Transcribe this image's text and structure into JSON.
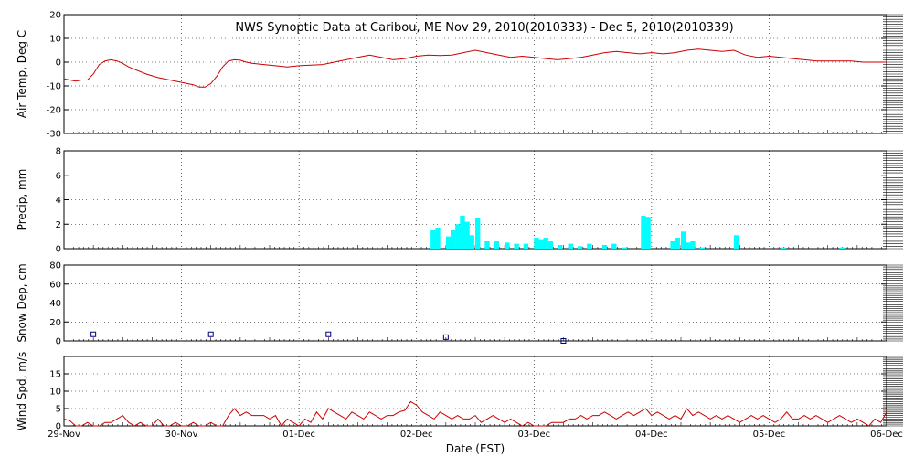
{
  "title": "NWS Synoptic Data at Caribou, ME    Nov 29, 2010(2010333) - Dec  5, 2010(2010339)",
  "xlabel": "Date (EST)",
  "x_ticks": [
    "29-Nov",
    "30-Nov",
    "01-Dec",
    "02-Dec",
    "03-Dec",
    "04-Dec",
    "05-Dec",
    "06-Dec"
  ],
  "colors": {
    "air_temp": "#cc0000",
    "precip": "#00ffff",
    "snow": "#000080",
    "wind": "#cc0000",
    "grid": "#000000"
  },
  "chart_data": [
    {
      "type": "line",
      "name": "air-temp",
      "ylabel": "Air Temp, Deg C",
      "ylim": [
        -30,
        20
      ],
      "yticks": [
        -30,
        -20,
        -10,
        0,
        10,
        20
      ],
      "grid": true,
      "x_units": "days after 29-Nov 00:00 EST",
      "x": [
        0,
        0.05,
        0.1,
        0.15,
        0.2,
        0.25,
        0.3,
        0.35,
        0.4,
        0.45,
        0.5,
        0.55,
        0.6,
        0.7,
        0.8,
        0.9,
        1.0,
        1.1,
        1.15,
        1.2,
        1.25,
        1.3,
        1.35,
        1.4,
        1.45,
        1.5,
        1.55,
        1.6,
        1.7,
        1.8,
        1.9,
        2.0,
        2.2,
        2.3,
        2.4,
        2.5,
        2.6,
        2.7,
        2.8,
        2.9,
        3.0,
        3.1,
        3.2,
        3.3,
        3.4,
        3.5,
        3.6,
        3.7,
        3.8,
        3.9,
        4.0,
        4.1,
        4.2,
        4.3,
        4.4,
        4.5,
        4.6,
        4.7,
        4.8,
        4.9,
        5.0,
        5.1,
        5.2,
        5.3,
        5.4,
        5.5,
        5.6,
        5.7,
        5.8,
        5.9,
        6.0,
        6.1,
        6.2,
        6.3,
        6.4,
        6.5,
        6.6,
        6.7,
        6.8,
        6.9,
        7.0
      ],
      "y": [
        -7,
        -7.5,
        -8,
        -7.5,
        -7.5,
        -5,
        -1,
        0.5,
        1,
        0.5,
        -0.5,
        -2,
        -3,
        -5,
        -6.5,
        -7.5,
        -8.5,
        -9.5,
        -10.5,
        -10.5,
        -9,
        -6,
        -2,
        0.5,
        1,
        0.8,
        0,
        -0.5,
        -1,
        -1.5,
        -2,
        -1.5,
        -1,
        0,
        1,
        2,
        3,
        2,
        1,
        1.5,
        2.5,
        3,
        2.8,
        3,
        4,
        5,
        4,
        3,
        2,
        2.5,
        2,
        1.5,
        1,
        1.5,
        2,
        3,
        4,
        4.5,
        4,
        3.5,
        4,
        3.5,
        4,
        5,
        5.5,
        5,
        4.5,
        5,
        3,
        2,
        2.5,
        2,
        1.5,
        1,
        0.5,
        0.5,
        0.5,
        0.5,
        0,
        0,
        0
      ]
    },
    {
      "type": "bar",
      "name": "precipitation",
      "ylabel": "Precip, mm",
      "ylim": [
        0,
        8
      ],
      "yticks": [
        0,
        2,
        4,
        6,
        8
      ],
      "grid": true,
      "x_units": "days after 29-Nov 00:00 EST",
      "x": [
        3.12,
        3.16,
        3.25,
        3.29,
        3.33,
        3.37,
        3.41,
        3.45,
        3.5,
        3.58,
        3.66,
        3.75,
        3.83,
        3.91,
        4.0,
        4.04,
        4.08,
        4.12,
        4.2,
        4.29,
        4.37,
        4.45,
        4.58,
        4.66,
        4.75,
        4.91,
        4.95,
        5.16,
        5.2,
        5.25,
        5.29,
        5.33,
        5.41,
        5.7,
        6.1,
        6.6
      ],
      "values": [
        1.5,
        1.7,
        1.0,
        1.5,
        2.0,
        2.7,
        2.2,
        1.1,
        2.5,
        0.6,
        0.6,
        0.5,
        0.4,
        0.4,
        0.9,
        0.7,
        0.9,
        0.6,
        0.3,
        0.4,
        0.2,
        0.4,
        0.3,
        0.4,
        0.1,
        2.7,
        2.6,
        0.6,
        0.9,
        1.4,
        0.5,
        0.6,
        0.1,
        1.1,
        0.1,
        0.1
      ]
    },
    {
      "type": "scatter",
      "name": "snow-depth",
      "ylabel": "Snow Dep, cm",
      "ylim": [
        0,
        80
      ],
      "yticks": [
        0,
        20,
        40,
        60,
        80
      ],
      "grid": true,
      "x_units": "days after 29-Nov 00:00 EST",
      "x": [
        0.25,
        1.25,
        2.25,
        3.25,
        4.25
      ],
      "y": [
        7,
        7,
        7,
        4,
        0
      ]
    },
    {
      "type": "line",
      "name": "wind-speed",
      "ylabel": "Wind Spd, m/s",
      "ylim": [
        0,
        20
      ],
      "yticks": [
        0,
        5,
        10,
        15
      ],
      "grid": true,
      "x_units": "days after 29-Nov 00:00 EST",
      "x": [
        0,
        0.05,
        0.1,
        0.15,
        0.2,
        0.25,
        0.3,
        0.35,
        0.4,
        0.45,
        0.5,
        0.55,
        0.6,
        0.65,
        0.7,
        0.75,
        0.8,
        0.85,
        0.9,
        0.95,
        1.0,
        1.05,
        1.1,
        1.15,
        1.2,
        1.25,
        1.3,
        1.35,
        1.4,
        1.45,
        1.5,
        1.55,
        1.6,
        1.65,
        1.7,
        1.75,
        1.8,
        1.85,
        1.9,
        1.95,
        2.0,
        2.05,
        2.1,
        2.15,
        2.2,
        2.25,
        2.3,
        2.35,
        2.4,
        2.45,
        2.5,
        2.55,
        2.6,
        2.65,
        2.7,
        2.75,
        2.8,
        2.85,
        2.9,
        2.95,
        3.0,
        3.05,
        3.1,
        3.15,
        3.2,
        3.25,
        3.3,
        3.35,
        3.4,
        3.45,
        3.5,
        3.55,
        3.6,
        3.65,
        3.7,
        3.75,
        3.8,
        3.85,
        3.9,
        3.95,
        4.0,
        4.05,
        4.1,
        4.15,
        4.2,
        4.25,
        4.3,
        4.35,
        4.4,
        4.45,
        4.5,
        4.55,
        4.6,
        4.65,
        4.7,
        4.75,
        4.8,
        4.85,
        4.9,
        4.95,
        5.0,
        5.05,
        5.1,
        5.15,
        5.2,
        5.25,
        5.3,
        5.35,
        5.4,
        5.45,
        5.5,
        5.55,
        5.6,
        5.65,
        5.7,
        5.75,
        5.8,
        5.85,
        5.9,
        5.95,
        6.0,
        6.05,
        6.1,
        6.15,
        6.2,
        6.25,
        6.3,
        6.35,
        6.4,
        6.45,
        6.5,
        6.55,
        6.6,
        6.65,
        6.7,
        6.75,
        6.8,
        6.85,
        6.9,
        6.95,
        7.0
      ],
      "y": [
        2,
        1.5,
        0,
        0,
        1,
        0,
        0,
        1,
        1,
        2,
        3,
        1,
        0,
        1,
        0,
        0,
        2,
        0,
        0,
        1,
        0,
        0,
        1,
        0,
        0,
        1,
        0,
        0,
        3,
        5,
        3,
        4,
        3,
        3,
        3,
        2,
        3,
        0,
        2,
        1,
        0,
        2,
        1,
        4,
        2,
        5,
        4,
        3,
        2,
        4,
        3,
        2,
        4,
        3,
        2,
        3,
        3,
        4,
        4.5,
        7,
        6,
        4,
        3,
        2,
        4,
        3,
        2,
        3,
        2,
        2,
        3,
        1,
        2,
        3,
        2,
        1,
        2,
        1,
        0,
        1,
        0,
        0,
        0,
        1,
        1,
        1,
        2,
        2,
        3,
        2,
        3,
        3,
        4,
        3,
        2,
        3,
        4,
        3,
        4,
        5,
        3,
        4,
        3,
        2,
        3,
        2,
        5,
        3,
        4,
        3,
        2,
        3,
        2,
        3,
        2,
        1,
        2,
        3,
        2,
        3,
        2,
        1,
        2,
        4,
        2,
        2,
        3,
        2,
        3,
        2,
        1,
        2,
        3,
        2,
        1,
        2,
        1,
        0,
        2,
        1,
        4
      ]
    }
  ]
}
